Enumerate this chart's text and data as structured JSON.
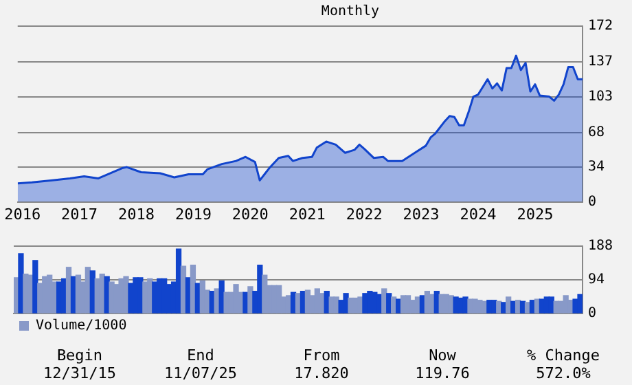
{
  "chart_data": [
    {
      "type": "area",
      "title": "Monthly",
      "x": [
        "2015-12",
        "2016-03",
        "2016-07",
        "2016-11",
        "2017-02",
        "2017-05",
        "2017-10",
        "2017-11",
        "2018-02",
        "2018-06",
        "2018-09",
        "2018-12",
        "2019-03",
        "2019-04",
        "2019-07",
        "2019-10",
        "2019-12",
        "2020-02",
        "2020-03",
        "2020-04",
        "2020-05",
        "2020-07",
        "2020-09",
        "2020-10",
        "2020-12",
        "2021-02",
        "2021-03",
        "2021-05",
        "2021-07",
        "2021-09",
        "2021-11",
        "2021-12",
        "2022-01",
        "2022-03",
        "2022-05",
        "2022-06",
        "2022-09",
        "2022-10",
        "2022-12",
        "2023-02",
        "2023-03",
        "2023-04",
        "2023-06",
        "2023-07",
        "2023-08",
        "2023-09",
        "2023-10",
        "2023-11",
        "2023-12",
        "2024-01",
        "2024-03",
        "2024-04",
        "2024-05",
        "2024-06",
        "2024-07",
        "2024-08",
        "2024-09",
        "2024-10",
        "2024-11",
        "2024-12",
        "2025-01",
        "2025-02",
        "2025-04",
        "2025-05",
        "2025-06",
        "2025-07",
        "2025-08",
        "2025-09",
        "2025-10",
        "2025-11"
      ],
      "series": [
        {
          "color": "#1144cc",
          "values": [
            18,
            19,
            21,
            23,
            25,
            23,
            33,
            34,
            29,
            28,
            24,
            27,
            27,
            32,
            37,
            40,
            44,
            39,
            21,
            27,
            33,
            43,
            45,
            40,
            43,
            44,
            53,
            59,
            56,
            48,
            51,
            56,
            52,
            43,
            44,
            40,
            40,
            43,
            49,
            55,
            63,
            67,
            79,
            84,
            83,
            75,
            75,
            88,
            103,
            105,
            120,
            111,
            116,
            109,
            131,
            131,
            143,
            129,
            136,
            108,
            115,
            104,
            103,
            99,
            105,
            115,
            132,
            132,
            120,
            120
          ]
        }
      ],
      "xlim": [
        "2015-12",
        "2025-11"
      ],
      "xticks": [
        {
          "value": "2016-01",
          "label": "2016"
        },
        {
          "value": "2017-01",
          "label": "2017"
        },
        {
          "value": "2018-01",
          "label": "2018"
        },
        {
          "value": "2019-01",
          "label": "2019"
        },
        {
          "value": "2020-01",
          "label": "2020"
        },
        {
          "value": "2021-01",
          "label": "2021"
        },
        {
          "value": "2022-01",
          "label": "2022"
        },
        {
          "value": "2023-01",
          "label": "2023"
        },
        {
          "value": "2024-01",
          "label": "2024"
        },
        {
          "value": "2025-01",
          "label": "2025"
        }
      ],
      "ylim": [
        0,
        172
      ],
      "yticks": [
        0,
        34,
        68,
        103,
        137,
        172
      ],
      "grid": "y",
      "marker": "none"
    },
    {
      "type": "bar",
      "categories": [
        null,
        null,
        null,
        null,
        null,
        null,
        null,
        null,
        null,
        null,
        null,
        null,
        null,
        null,
        null,
        null,
        null,
        null,
        null,
        null,
        null,
        null,
        null,
        null,
        null,
        null,
        null,
        null,
        null,
        null,
        null,
        null,
        null,
        null,
        null,
        null,
        null,
        null,
        null,
        null,
        null,
        null,
        null,
        null,
        null,
        null,
        null,
        null,
        null,
        null,
        null,
        null,
        null,
        null,
        null,
        null,
        null,
        null,
        null,
        null,
        null,
        null,
        null,
        null,
        null,
        null,
        null,
        null,
        null,
        null,
        null,
        null,
        null,
        null,
        null,
        null,
        null,
        null,
        null,
        null,
        null,
        null,
        null,
        null,
        null,
        null,
        null,
        null,
        null,
        null,
        null,
        null,
        null,
        null,
        null,
        null,
        null,
        null,
        null,
        null,
        null,
        null,
        null,
        null,
        null,
        null,
        null,
        null,
        null,
        null,
        null,
        null,
        null,
        null,
        null,
        null,
        null,
        null,
        null
      ],
      "series": [
        {
          "name": "Volume/1000",
          "color": "#8899c8",
          "values": [
            100,
            167,
            110,
            107,
            148,
            84,
            103,
            107,
            88,
            88,
            97,
            129,
            103,
            107,
            88,
            129,
            119,
            97,
            110,
            103,
            88,
            81,
            97,
            103,
            84,
            100,
            100,
            88,
            97,
            88,
            97,
            97,
            81,
            88,
            180,
            132,
            100,
            135,
            84,
            91,
            65,
            62,
            69,
            91,
            59,
            59,
            81,
            59,
            59,
            75,
            62,
            135,
            107,
            78,
            78,
            78,
            46,
            50,
            59,
            56,
            62,
            65,
            50,
            69,
            56,
            62,
            46,
            46,
            37,
            56,
            43,
            43,
            46,
            56,
            62,
            59,
            53,
            69,
            56,
            46,
            40,
            50,
            50,
            37,
            46,
            50,
            62,
            53,
            62,
            53,
            53,
            50,
            46,
            43,
            46,
            40,
            40,
            37,
            34,
            37,
            37,
            34,
            31,
            46,
            34,
            37,
            34,
            31,
            37,
            40,
            40,
            46,
            46,
            34,
            34,
            50,
            37,
            40,
            53
          ],
          "colors": [
            "#8899c8",
            "#1144cc",
            "#8899c8",
            "#8899c8",
            "#1144cc",
            "#8899c8",
            "#8899c8",
            "#8899c8",
            "#8899c8",
            "#1144cc",
            "#1144cc",
            "#8899c8",
            "#1144cc",
            "#8899c8",
            "#8899c8",
            "#8899c8",
            "#1144cc",
            "#8899c8",
            "#8899c8",
            "#1144cc",
            "#8899c8",
            "#8899c8",
            "#8899c8",
            "#8899c8",
            "#1144cc",
            "#1144cc",
            "#1144cc",
            "#8899c8",
            "#8899c8",
            "#1144cc",
            "#1144cc",
            "#1144cc",
            "#1144cc",
            "#1144cc",
            "#1144cc",
            "#8899c8",
            "#1144cc",
            "#8899c8",
            "#1144cc",
            "#8899c8",
            "#8899c8",
            "#1144cc",
            "#8899c8",
            "#1144cc",
            "#8899c8",
            "#8899c8",
            "#8899c8",
            "#8899c8",
            "#1144cc",
            "#8899c8",
            "#1144cc",
            "#1144cc",
            "#8899c8",
            "#8899c8",
            "#8899c8",
            "#8899c8",
            "#8899c8",
            "#8899c8",
            "#1144cc",
            "#8899c8",
            "#1144cc",
            "#8899c8",
            "#8899c8",
            "#8899c8",
            "#8899c8",
            "#1144cc",
            "#8899c8",
            "#8899c8",
            "#1144cc",
            "#1144cc",
            "#8899c8",
            "#8899c8",
            "#8899c8",
            "#1144cc",
            "#1144cc",
            "#1144cc",
            "#1144cc",
            "#8899c8",
            "#1144cc",
            "#8899c8",
            "#1144cc",
            "#8899c8",
            "#8899c8",
            "#8899c8",
            "#8899c8",
            "#1144cc",
            "#8899c8",
            "#8899c8",
            "#1144cc",
            "#8899c8",
            "#8899c8",
            "#8899c8",
            "#1144cc",
            "#1144cc",
            "#1144cc",
            "#8899c8",
            "#8899c8",
            "#8899c8",
            "#8899c8",
            "#1144cc",
            "#1144cc",
            "#8899c8",
            "#1144cc",
            "#8899c8",
            "#1144cc",
            "#8899c8",
            "#1144cc",
            "#8899c8",
            "#1144cc",
            "#8899c8",
            "#1144cc",
            "#1144cc",
            "#1144cc",
            "#8899c8",
            "#8899c8",
            "#8899c8",
            "#8899c8",
            "#1144cc",
            "#1144cc"
          ]
        }
      ],
      "ylim": [
        0,
        188
      ],
      "yticks": [
        0,
        94,
        188
      ],
      "grid": "y",
      "tick_labels": "y",
      "legend": "bottom left",
      "annotations": [
        "Begin",
        "End",
        "From",
        "Now",
        "% Change",
        "12/31/15",
        "11/07/25",
        "17.820",
        "119.76",
        "572.0%"
      ]
    }
  ]
}
